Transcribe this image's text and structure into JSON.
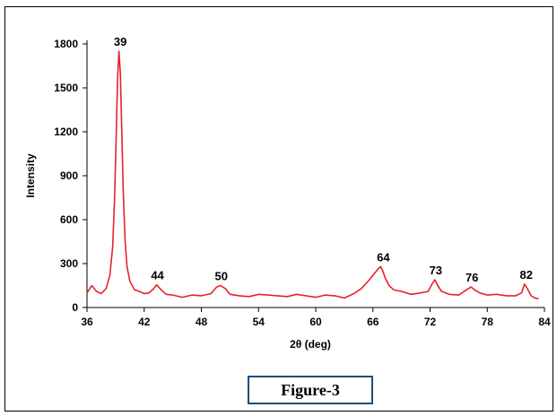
{
  "caption": "Figure-3",
  "chart_data": {
    "type": "line",
    "xlabel": "2θ (deg)",
    "ylabel": "Intensity",
    "xlim": [
      36,
      84
    ],
    "ylim": [
      0,
      1800
    ],
    "xticks": [
      36,
      42,
      48,
      54,
      60,
      66,
      72,
      78,
      84
    ],
    "yticks": [
      0,
      300,
      600,
      900,
      1200,
      1500,
      1800
    ],
    "line_color": "#e8212c",
    "grid": false,
    "series": [
      {
        "x": [
          36.0,
          36.5,
          37.0,
          37.5,
          38.0,
          38.4,
          38.7,
          38.9,
          39.1,
          39.2,
          39.35,
          39.5,
          39.65,
          39.8,
          40.0,
          40.2,
          40.5,
          41.0,
          41.5,
          42.0,
          42.5,
          43.0,
          43.3,
          43.8,
          44.3,
          45.0,
          46.0,
          47.0,
          48.0,
          49.0,
          49.6,
          50.0,
          50.5,
          51.0,
          52.0,
          53.0,
          54.0,
          55.0,
          56.0,
          57.0,
          58.0,
          59.0,
          60.0,
          61.0,
          62.0,
          63.0,
          64.0,
          64.8,
          65.5,
          66.0,
          66.5,
          66.8,
          67.0,
          67.3,
          67.7,
          68.2,
          69.0,
          70.0,
          71.0,
          71.8,
          72.2,
          72.5,
          72.8,
          73.2,
          74.0,
          75.0,
          75.8,
          76.3,
          76.7,
          77.2,
          78.0,
          79.0,
          80.0,
          81.0,
          81.6,
          81.9,
          82.2,
          82.6,
          83.0,
          83.4
        ],
        "values": [
          100,
          150,
          110,
          95,
          130,
          220,
          420,
          760,
          1250,
          1550,
          1750,
          1600,
          1200,
          800,
          450,
          280,
          180,
          120,
          110,
          95,
          100,
          130,
          155,
          120,
          90,
          85,
          70,
          85,
          80,
          95,
          140,
          150,
          130,
          90,
          80,
          75,
          90,
          85,
          80,
          75,
          90,
          80,
          70,
          85,
          80,
          65,
          95,
          130,
          180,
          220,
          260,
          280,
          255,
          200,
          150,
          120,
          110,
          90,
          100,
          110,
          160,
          190,
          150,
          110,
          90,
          85,
          120,
          140,
          120,
          100,
          85,
          90,
          80,
          80,
          100,
          160,
          130,
          80,
          65,
          60
        ]
      }
    ],
    "annotations": [
      {
        "text": "39",
        "x": 39.4,
        "y": 1750
      },
      {
        "text": "44",
        "x": 43.3,
        "y": 155
      },
      {
        "text": "50",
        "x": 50.0,
        "y": 150
      },
      {
        "text": "64",
        "x": 67.0,
        "y": 280
      },
      {
        "text": "73",
        "x": 72.5,
        "y": 190
      },
      {
        "text": "76",
        "x": 76.3,
        "y": 140
      },
      {
        "text": "82",
        "x": 82.0,
        "y": 160
      }
    ]
  }
}
